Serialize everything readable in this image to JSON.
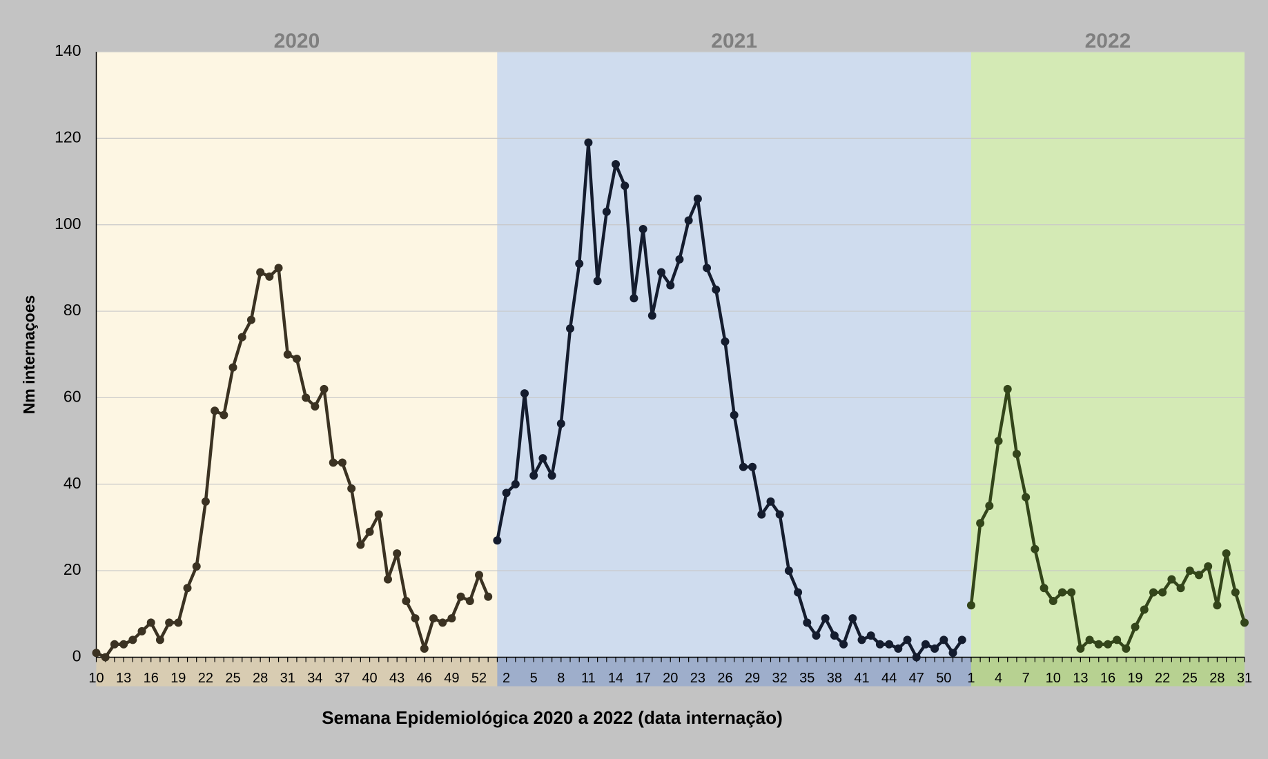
{
  "chart_data": {
    "type": "line",
    "ylabel": "Nm internaçoes",
    "xlabel": "Semana Epidemiológica 2020 a 2022 (data internação)",
    "ylim": [
      0,
      140
    ],
    "yticks": [
      0,
      20,
      40,
      60,
      80,
      100,
      120,
      140
    ],
    "grid": true,
    "series": [
      {
        "name": "2020",
        "color": "#3b3222",
        "band_color": "#fdf6e3",
        "strip_color": "#d8ccb2",
        "categories": [
          "10",
          null,
          null,
          "13",
          null,
          null,
          "16",
          null,
          null,
          "19",
          null,
          null,
          "22",
          null,
          null,
          "25",
          null,
          null,
          "28",
          null,
          null,
          "31",
          null,
          null,
          "34",
          null,
          null,
          "37",
          null,
          null,
          "40",
          null,
          null,
          "43",
          null,
          null,
          "46",
          null,
          null,
          "49",
          null,
          null,
          "52",
          null
        ],
        "values": [
          1,
          0,
          3,
          3,
          4,
          6,
          8,
          4,
          8,
          8,
          16,
          21,
          36,
          57,
          56,
          67,
          74,
          78,
          89,
          88,
          90,
          70,
          69,
          60,
          58,
          62,
          45,
          45,
          39,
          26,
          29,
          33,
          18,
          24,
          13,
          9,
          2,
          9,
          8,
          9,
          14,
          13,
          19,
          14
        ]
      },
      {
        "name": "2021",
        "color": "#141c2e",
        "band_color": "#cfdcee",
        "strip_color": "#9eaecb",
        "categories": [
          null,
          "2",
          null,
          null,
          "5",
          null,
          null,
          "8",
          null,
          null,
          "11",
          null,
          null,
          "14",
          null,
          null,
          "17",
          null,
          null,
          "20",
          null,
          null,
          "23",
          null,
          null,
          "26",
          null,
          null,
          "29",
          null,
          null,
          "32",
          null,
          null,
          "35",
          null,
          null,
          "38",
          null,
          null,
          "41",
          null,
          null,
          "44",
          null,
          null,
          "47",
          null,
          null,
          "50",
          null,
          null
        ],
        "values": [
          27,
          38,
          40,
          61,
          42,
          46,
          42,
          54,
          76,
          91,
          119,
          87,
          103,
          114,
          109,
          83,
          99,
          79,
          89,
          86,
          92,
          101,
          106,
          90,
          85,
          73,
          56,
          44,
          44,
          33,
          36,
          33,
          20,
          15,
          8,
          5,
          9,
          5,
          3,
          9,
          4,
          5,
          3,
          3,
          2,
          4,
          0,
          3,
          2,
          4,
          1,
          4
        ]
      },
      {
        "name": "2022",
        "color": "#33451a",
        "band_color": "#d4eab5",
        "strip_color": "#b7d191",
        "categories": [
          "1",
          null,
          null,
          "4",
          null,
          null,
          "7",
          null,
          null,
          "10",
          null,
          null,
          "13",
          null,
          null,
          "16",
          null,
          null,
          "19",
          null,
          null,
          "22",
          null,
          null,
          "25",
          null,
          null,
          "28",
          null,
          null,
          "31"
        ],
        "values": [
          12,
          31,
          35,
          50,
          62,
          47,
          37,
          25,
          16,
          13,
          15,
          15,
          2,
          4,
          3,
          3,
          4,
          2,
          7,
          11,
          15,
          15,
          18,
          16,
          20,
          19,
          21,
          12,
          24,
          15,
          8
        ]
      }
    ]
  }
}
